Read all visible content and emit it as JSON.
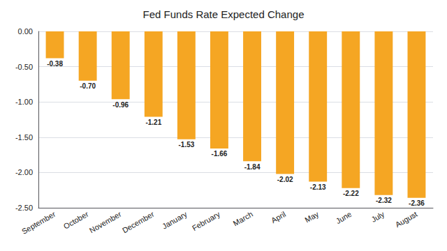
{
  "chart_data": {
    "type": "bar",
    "title": "Fed Funds Rate Expected Change",
    "categories": [
      "September",
      "October",
      "November",
      "December",
      "January",
      "February",
      "March",
      "April",
      "May",
      "June",
      "July",
      "August"
    ],
    "values": [
      -0.38,
      -0.7,
      -0.96,
      -1.21,
      -1.53,
      -1.66,
      -1.84,
      -2.02,
      -2.13,
      -2.22,
      -2.32,
      -2.36
    ],
    "value_labels": [
      "-0.38",
      "-0.70",
      "-0.96",
      "-1.21",
      "-1.53",
      "-1.66",
      "-1.84",
      "-2.02",
      "-2.13",
      "-2.22",
      "-2.32",
      "-2.36"
    ],
    "data_labels": true,
    "color": "#F5A623",
    "ylim": [
      -2.5,
      0.0
    ],
    "yticks": [
      {
        "value": 0.0,
        "label": "0.00"
      },
      {
        "value": -0.5,
        "label": "-0.50"
      },
      {
        "value": -1.0,
        "label": "-1.00"
      },
      {
        "value": -1.5,
        "label": "-1.50"
      },
      {
        "value": -2.0,
        "label": "-2.00"
      },
      {
        "value": -2.5,
        "label": "-2.50"
      }
    ],
    "grid": true
  }
}
